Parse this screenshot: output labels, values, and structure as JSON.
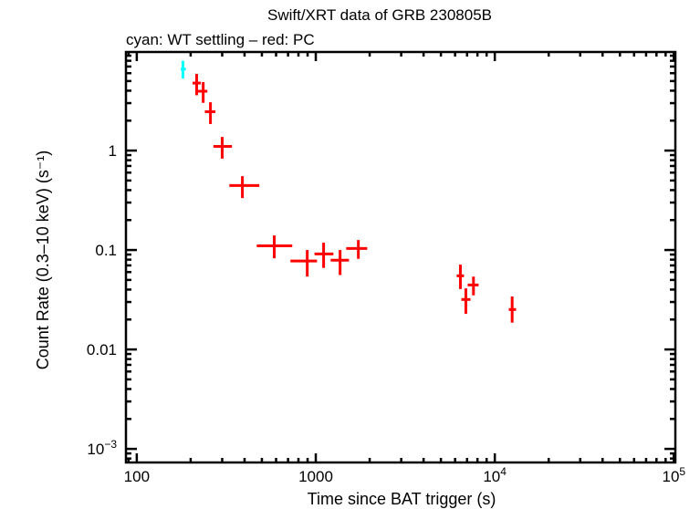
{
  "chart_data": {
    "type": "scatter",
    "title": "Swift/XRT data of GRB 230805B",
    "subtitle": "cyan: WT settling – red: PC",
    "xlabel": "Time since BAT trigger (s)",
    "ylabel": "Count Rate (0.3–10 keV) (s⁻¹)",
    "xscale": "log",
    "yscale": "log",
    "xlim": [
      87,
      102000
    ],
    "ylim": [
      0.00073,
      9.8
    ],
    "grid": false,
    "x_ticks": [
      {
        "value": 100,
        "label": "100",
        "sup": ""
      },
      {
        "value": 1000,
        "label": "1000",
        "sup": ""
      },
      {
        "value": 10000,
        "label": "10",
        "sup": "4"
      },
      {
        "value": 100000,
        "label": "10",
        "sup": "5"
      }
    ],
    "y_ticks": [
      {
        "value": 0.001,
        "label": "10",
        "sup": "−3"
      },
      {
        "value": 0.01,
        "label": "0.01",
        "sup": ""
      },
      {
        "value": 0.1,
        "label": "0.1",
        "sup": ""
      },
      {
        "value": 1,
        "label": "1",
        "sup": ""
      }
    ],
    "series": [
      {
        "color": "#00ffff",
        "points": [
          {
            "x": 181,
            "xlo": 176,
            "xhi": 188,
            "y": 6.6,
            "ylo": 5.3,
            "yhi": 8.0
          }
        ]
      },
      {
        "color": "#ff0000",
        "points": [
          {
            "x": 216,
            "xlo": 205,
            "xhi": 228,
            "y": 4.77,
            "ylo": 3.6,
            "yhi": 5.9
          },
          {
            "x": 235,
            "xlo": 213,
            "xhi": 248,
            "y": 3.95,
            "ylo": 3.02,
            "yhi": 4.88
          },
          {
            "x": 258,
            "xlo": 240,
            "xhi": 275,
            "y": 2.46,
            "ylo": 1.85,
            "yhi": 3.06
          },
          {
            "x": 300,
            "xlo": 268,
            "xhi": 340,
            "y": 1.1,
            "ylo": 0.83,
            "yhi": 1.37
          },
          {
            "x": 389,
            "xlo": 329,
            "xhi": 484,
            "y": 0.445,
            "ylo": 0.333,
            "yhi": 0.553
          },
          {
            "x": 586,
            "xlo": 468,
            "xhi": 739,
            "y": 0.11,
            "ylo": 0.0825,
            "yhi": 0.14
          },
          {
            "x": 896,
            "xlo": 722,
            "xhi": 1016,
            "y": 0.0775,
            "ylo": 0.0541,
            "yhi": 0.1
          },
          {
            "x": 1106,
            "xlo": 984,
            "xhi": 1254,
            "y": 0.0913,
            "ylo": 0.066,
            "yhi": 0.1185
          },
          {
            "x": 1367,
            "xlo": 1211,
            "xhi": 1532,
            "y": 0.079,
            "ylo": 0.056,
            "yhi": 0.1
          },
          {
            "x": 1729,
            "xlo": 1479,
            "xhi": 1938,
            "y": 0.1037,
            "ylo": 0.0816,
            "yhi": 0.126
          },
          {
            "x": 6423,
            "xlo": 6125,
            "xhi": 6730,
            "y": 0.055,
            "ylo": 0.0405,
            "yhi": 0.0713
          },
          {
            "x": 6890,
            "xlo": 6500,
            "xhi": 7310,
            "y": 0.0318,
            "ylo": 0.0228,
            "yhi": 0.0411
          },
          {
            "x": 7600,
            "xlo": 7060,
            "xhi": 8120,
            "y": 0.0445,
            "ylo": 0.035,
            "yhi": 0.054
          },
          {
            "x": 12500,
            "xlo": 11970,
            "xhi": 13150,
            "y": 0.0252,
            "ylo": 0.0186,
            "yhi": 0.0341
          }
        ]
      }
    ]
  }
}
